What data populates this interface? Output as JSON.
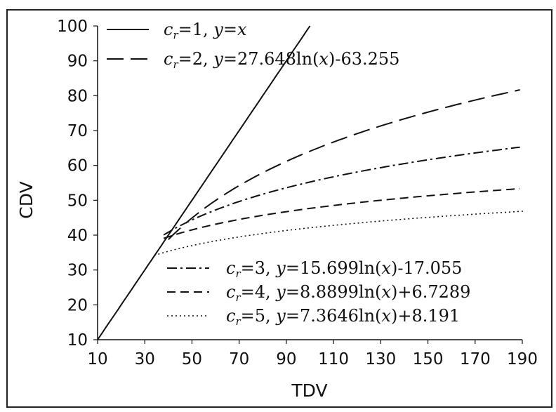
{
  "chart_data": {
    "type": "line",
    "title": "",
    "xlabel": "TDV",
    "ylabel": "CDV",
    "xlim": [
      10,
      190
    ],
    "ylim": [
      10,
      100
    ],
    "x_ticks": [
      10,
      30,
      50,
      70,
      90,
      110,
      130,
      150,
      170,
      190
    ],
    "y_ticks": [
      10,
      20,
      30,
      40,
      50,
      60,
      70,
      80,
      90,
      100
    ],
    "grid": false,
    "legend_placement": "top-left and bottom-right",
    "series": [
      {
        "name": "cr=1, y=x",
        "legend": {
          "c": "c",
          "sub": "r",
          "rest1": "=1, ",
          "y": "y",
          "rest2": "=",
          "x": "x",
          "rest3": ""
        },
        "style": "solid",
        "formula": {
          "kind": "identity"
        },
        "x_range": [
          10,
          100
        ]
      },
      {
        "name": "cr=2, y=27.648ln(x)-63.255",
        "legend": {
          "c": "c",
          "sub": "r",
          "rest1": "=2, ",
          "y": "y",
          "rest2": "=27.648ln(",
          "x": "x",
          "rest3": ")-63.255"
        },
        "style": "long-dash",
        "formula": {
          "kind": "log",
          "a": 27.648,
          "b": -63.255
        },
        "x_range": [
          40,
          189
        ]
      },
      {
        "name": "cr=3, y=15.699ln(x)-17.055",
        "legend": {
          "c": "c",
          "sub": "r",
          "rest1": "=3, ",
          "y": "y",
          "rest2": "=15.699ln(",
          "x": "x",
          "rest3": ")-17.055"
        },
        "style": "dash-dot",
        "formula": {
          "kind": "log",
          "a": 15.699,
          "b": -17.055
        },
        "x_range": [
          38,
          189
        ]
      },
      {
        "name": "cr=4, y=8.8899ln(x)+6.7289",
        "legend": {
          "c": "c",
          "sub": "r",
          "rest1": "=4, ",
          "y": "y",
          "rest2": "=8.8899ln(",
          "x": "x",
          "rest3": ")+6.7289"
        },
        "style": "dash",
        "formula": {
          "kind": "log",
          "a": 8.8899,
          "b": 6.7289
        },
        "x_range": [
          38,
          189
        ]
      },
      {
        "name": "cr=5, y=7.3646ln(x)+8.191",
        "legend": {
          "c": "c",
          "sub": "r",
          "rest1": "=5, ",
          "y": "y",
          "rest2": "=7.3646ln(",
          "x": "x",
          "rest3": ")+8.191"
        },
        "style": "dotted",
        "formula": {
          "kind": "log",
          "a": 7.3646,
          "b": 8.191
        },
        "x_range": [
          34,
          191
        ]
      }
    ]
  },
  "colors": {
    "line": "#111111",
    "axis": "#111111",
    "background": "#ffffff"
  }
}
